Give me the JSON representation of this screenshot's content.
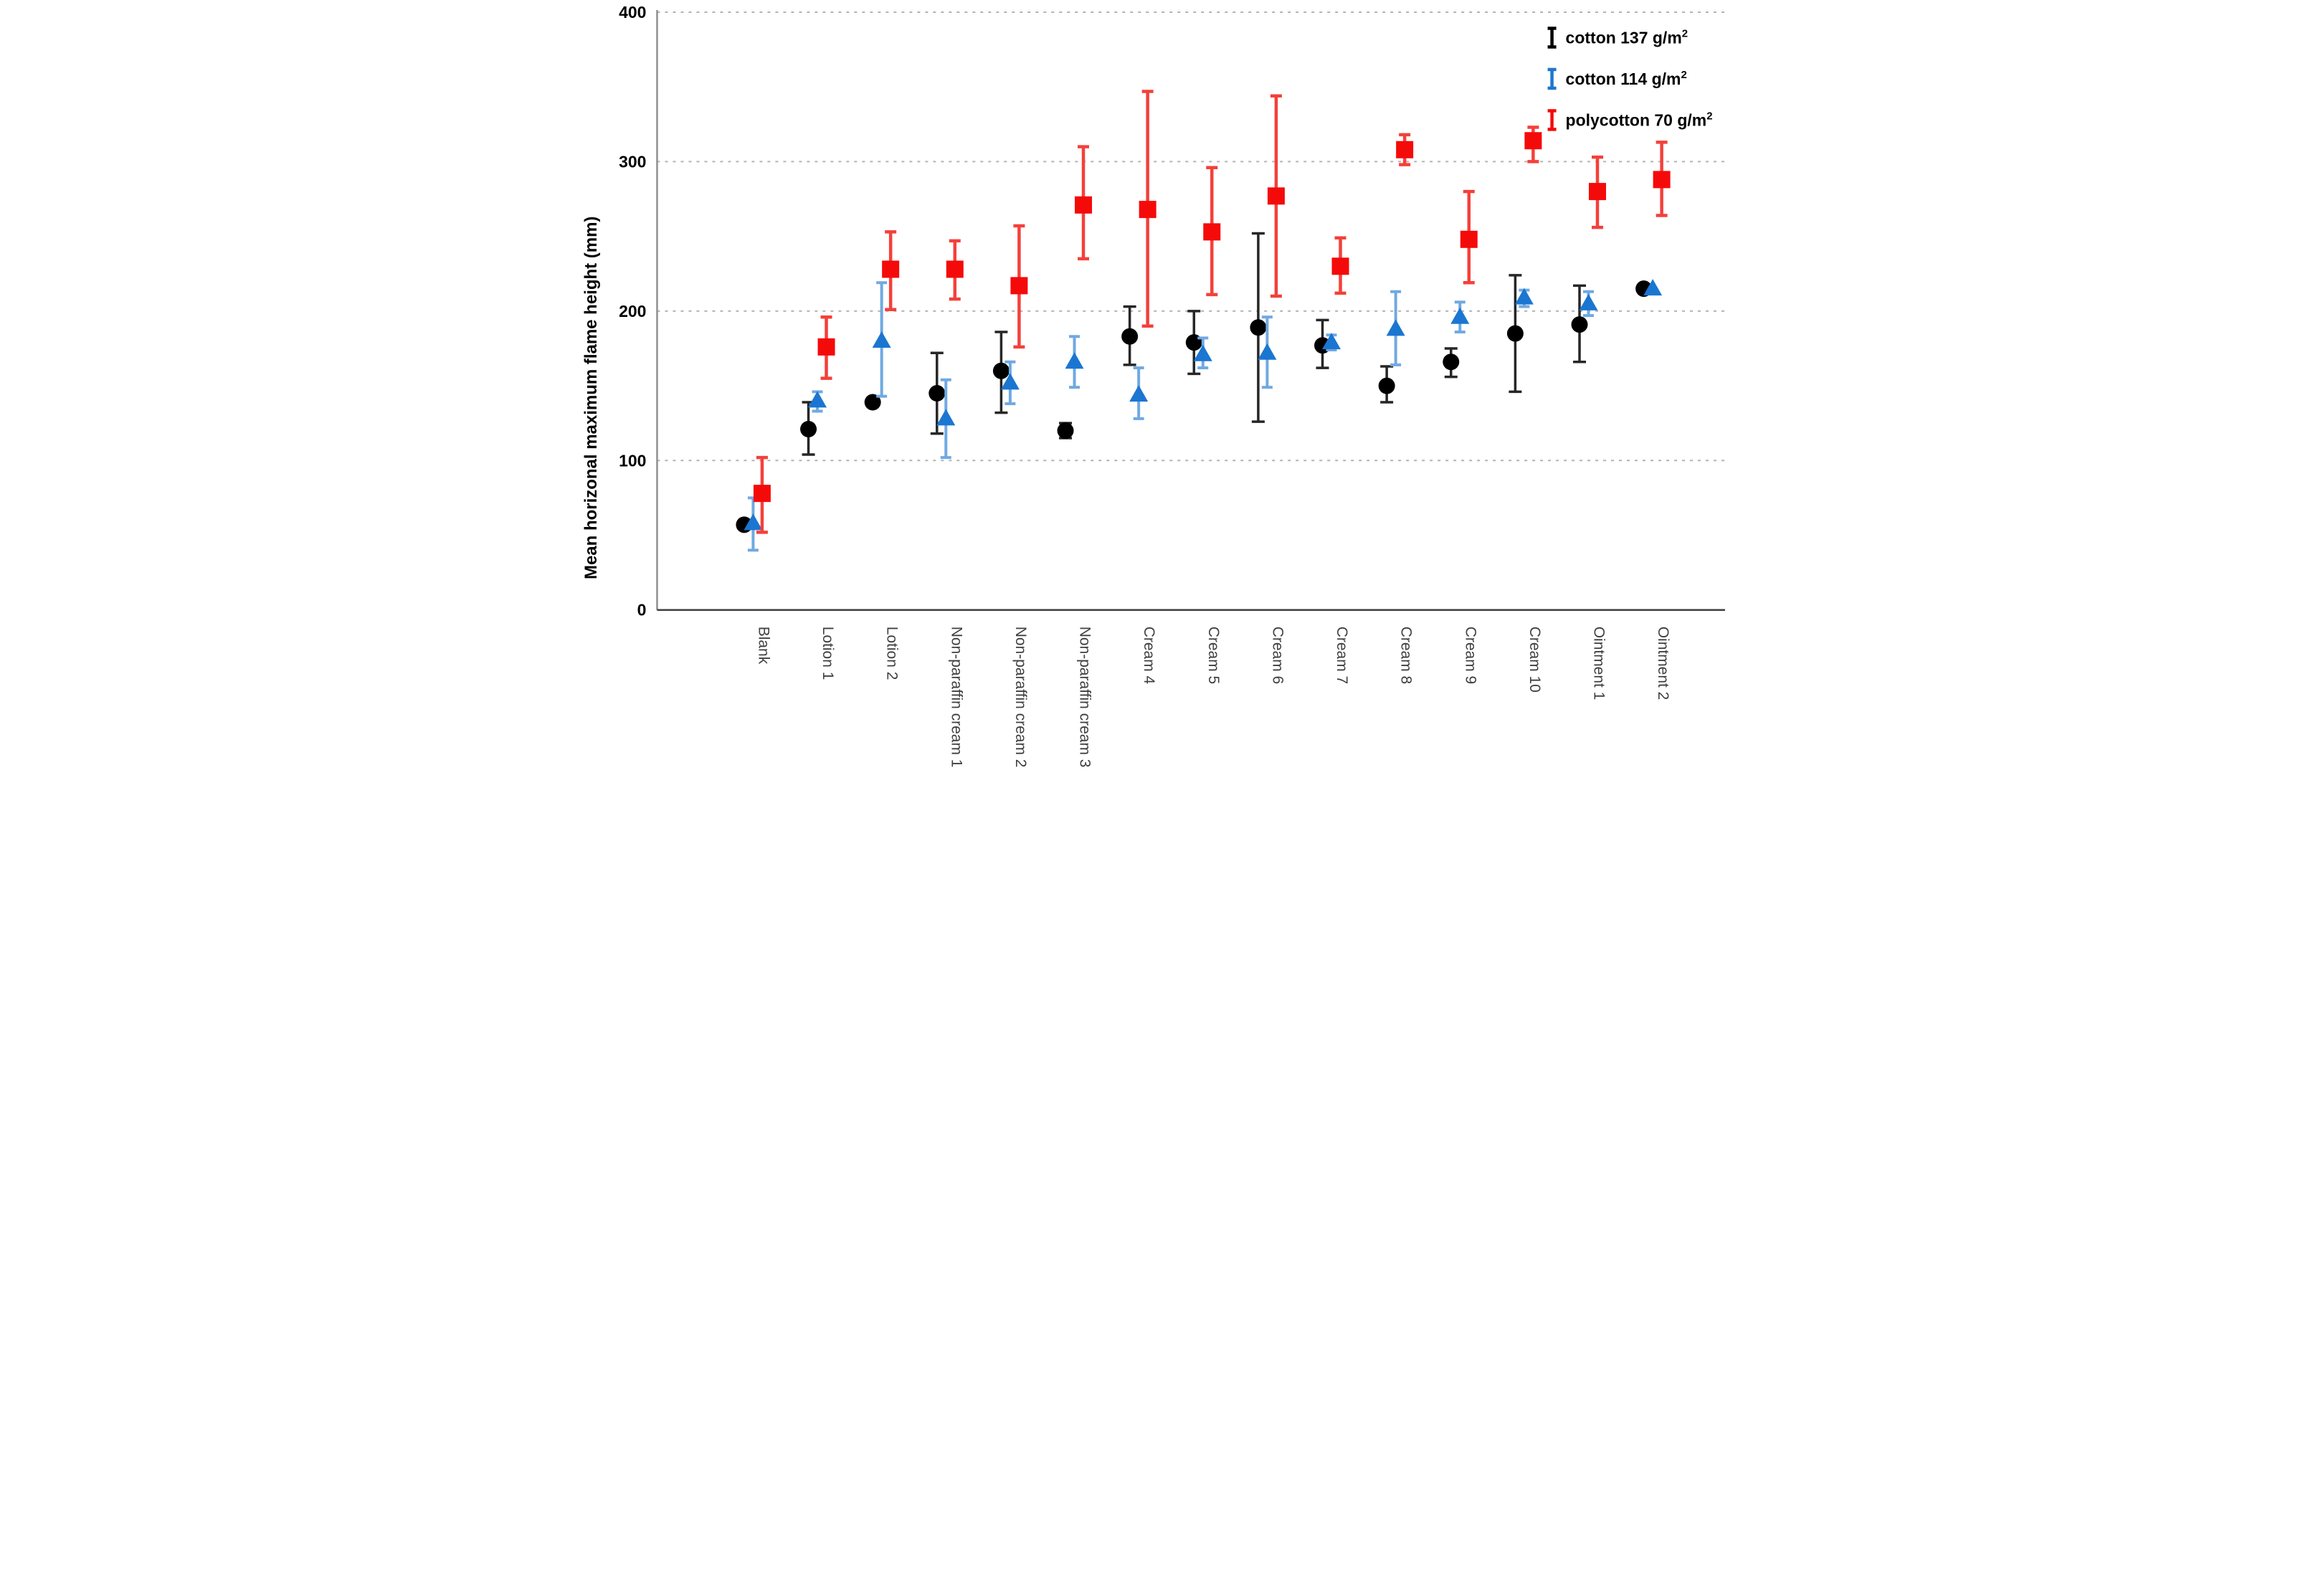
{
  "chart_data": {
    "type": "scatter",
    "title": "",
    "xlabel": "",
    "ylabel": "Mean horizonal maximum flame height (mm)",
    "ylim": [
      0,
      400
    ],
    "y_ticks": [
      0,
      100,
      200,
      300,
      400
    ],
    "grid": "horizontal-dotted",
    "legend_position": "top-right",
    "categories": [
      "Blank",
      "Lotion 1",
      "Lotion 2",
      "Non-paraffin cream 1",
      "Non-paraffin cream 2",
      "Non-paraffin cream 3",
      "Cream 4",
      "Cream 5",
      "Cream 6",
      "Cream 7",
      "Cream 8",
      "Cream 9",
      "Cream 10",
      "Ointment 1",
      "Ointment 2"
    ],
    "series": [
      {
        "label": "cotton 137 g/m",
        "label_sup": "2",
        "marker": "circle",
        "color": "#000000",
        "bar_color": "#262626",
        "points": [
          {
            "v": 57,
            "lo": 57,
            "hi": 57
          },
          {
            "v": 121,
            "lo": 104,
            "hi": 139
          },
          {
            "v": 139,
            "lo": 139,
            "hi": 139
          },
          {
            "v": 145,
            "lo": 118,
            "hi": 172
          },
          {
            "v": 160,
            "lo": 132,
            "hi": 186
          },
          {
            "v": 120,
            "lo": 115,
            "hi": 125
          },
          {
            "v": 183,
            "lo": 164,
            "hi": 203
          },
          {
            "v": 179,
            "lo": 158,
            "hi": 200
          },
          {
            "v": 189,
            "lo": 126,
            "hi": 252
          },
          {
            "v": 177,
            "lo": 162,
            "hi": 194
          },
          {
            "v": 150,
            "lo": 139,
            "hi": 163
          },
          {
            "v": 166,
            "lo": 156,
            "hi": 175
          },
          {
            "v": 185,
            "lo": 146,
            "hi": 224
          },
          {
            "v": 191,
            "lo": 166,
            "hi": 217
          },
          {
            "v": 215,
            "lo": 215,
            "hi": 215
          }
        ]
      },
      {
        "label": "cotton 114 g/m",
        "label_sup": "2",
        "marker": "triangle",
        "color": "#1b76d1",
        "bar_color": "#70a9e2",
        "points": [
          {
            "v": 58,
            "lo": 40,
            "hi": 75
          },
          {
            "v": 140,
            "lo": 133,
            "hi": 146
          },
          {
            "v": 180,
            "lo": 143,
            "hi": 219
          },
          {
            "v": 128,
            "lo": 102,
            "hi": 154
          },
          {
            "v": 152,
            "lo": 138,
            "hi": 166
          },
          {
            "v": 166,
            "lo": 149,
            "hi": 183
          },
          {
            "v": 144,
            "lo": 128,
            "hi": 162
          },
          {
            "v": 171,
            "lo": 162,
            "hi": 182
          },
          {
            "v": 172,
            "lo": 149,
            "hi": 196
          },
          {
            "v": 179,
            "lo": 174,
            "hi": 184
          },
          {
            "v": 188,
            "lo": 164,
            "hi": 213
          },
          {
            "v": 196,
            "lo": 186,
            "hi": 206
          },
          {
            "v": 209,
            "lo": 203,
            "hi": 214
          },
          {
            "v": 205,
            "lo": 197,
            "hi": 213
          },
          {
            "v": 215,
            "lo": 215,
            "hi": 215
          }
        ]
      },
      {
        "label": "polycotton 70 g/m",
        "label_sup": "2",
        "marker": "square",
        "color": "#f50a0a",
        "bar_color": "#f4403a",
        "points": [
          {
            "v": 78,
            "lo": 52,
            "hi": 102
          },
          {
            "v": 176,
            "lo": 155,
            "hi": 196
          },
          {
            "v": 228,
            "lo": 201,
            "hi": 253
          },
          {
            "v": 228,
            "lo": 208,
            "hi": 247
          },
          {
            "v": 217,
            "lo": 176,
            "hi": 257
          },
          {
            "v": 271,
            "lo": 235,
            "hi": 310
          },
          {
            "v": 268,
            "lo": 190,
            "hi": 347
          },
          {
            "v": 253,
            "lo": 211,
            "hi": 296
          },
          {
            "v": 277,
            "lo": 210,
            "hi": 344
          },
          {
            "v": 230,
            "lo": 212,
            "hi": 249
          },
          {
            "v": 308,
            "lo": 298,
            "hi": 318
          },
          {
            "v": 248,
            "lo": 219,
            "hi": 280
          },
          {
            "v": 314,
            "lo": 300,
            "hi": 323
          },
          {
            "v": 280,
            "lo": 256,
            "hi": 303
          },
          {
            "v": 288,
            "lo": 264,
            "hi": 313
          }
        ]
      }
    ],
    "colors": {
      "gridline": "#b3b3b3",
      "baseline": "#3f3f3f",
      "y_axis_line": "#8f8f8f",
      "category_text": "#3f3f3f"
    }
  }
}
